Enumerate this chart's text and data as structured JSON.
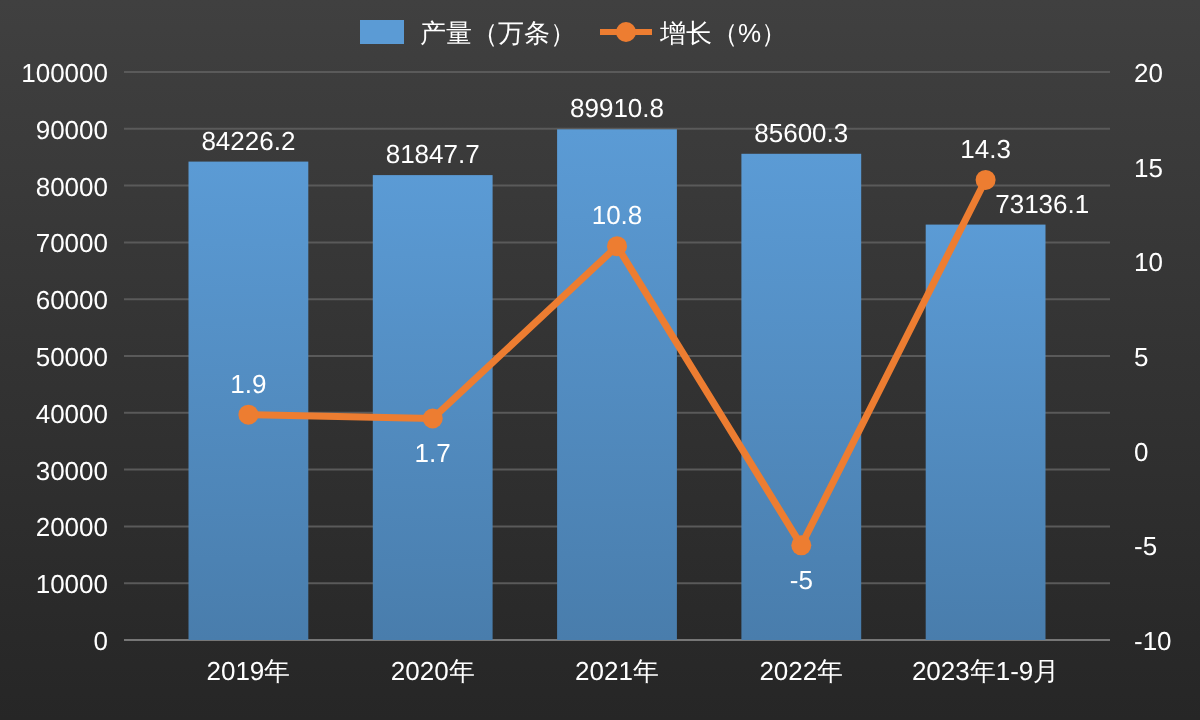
{
  "chart_data": {
    "type": "bar",
    "categories": [
      "2019年",
      "2020年",
      "2021年",
      "2022年",
      "2023年1-9月"
    ],
    "series": [
      {
        "name": "产量（万条）",
        "color": "#5b9bd5",
        "values": [
          84226.2,
          81847.7,
          89910.8,
          85600.3,
          73136.1
        ]
      },
      {
        "name": "增长（%）",
        "type": "line",
        "axis": "y2",
        "color": "#ed7d31",
        "values": [
          1.9,
          1.7,
          10.8,
          -5,
          14.3
        ]
      }
    ],
    "ylim": [
      0,
      100000
    ],
    "yticks": [
      0,
      10000,
      20000,
      30000,
      40000,
      50000,
      60000,
      70000,
      80000,
      90000,
      100000
    ],
    "y2lim": [
      -10,
      20
    ],
    "y2ticks": [
      -10,
      -5,
      0,
      5,
      10,
      15,
      20
    ],
    "grid": "y",
    "legend": "top",
    "marker": "circle",
    "line_style": "solid",
    "data_labels": true
  }
}
